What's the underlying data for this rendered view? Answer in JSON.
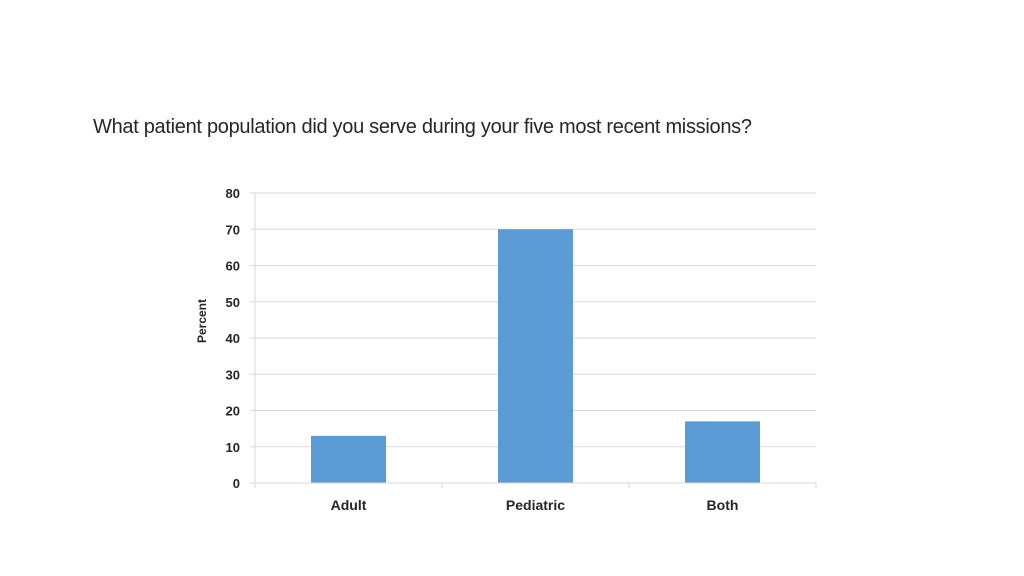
{
  "chart_data": {
    "type": "bar",
    "title": "What patient population did you serve during your five most recent missions?",
    "categories": [
      "Adult",
      "Pediatric",
      "Both"
    ],
    "values": [
      13,
      70,
      17
    ],
    "xlabel": "",
    "ylabel": "Percent",
    "ylim": [
      0,
      80
    ],
    "yticks": [
      0,
      10,
      20,
      30,
      40,
      50,
      60,
      70,
      80
    ],
    "grid": true,
    "legend": "none",
    "bar_color": "#5B9BD5",
    "gridline_color": "#D9D9D9"
  }
}
